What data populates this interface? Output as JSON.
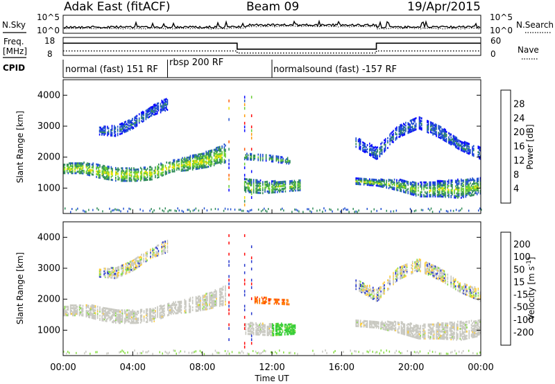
{
  "header": {
    "station": "Adak East (fitACF)",
    "beam": "Beam 09",
    "date": "19/Apr/2015"
  },
  "noise_panel": {
    "left_label": "N.Sky",
    "right_label": "N.Search",
    "left_ticks": [
      "10^5",
      "10^0"
    ],
    "right_ticks": [
      "10^5",
      "10^0"
    ]
  },
  "freq_panel": {
    "left_label_1": "Freq.",
    "left_label_2": "[MHz]",
    "right_label": "Nave",
    "left_ticks": [
      "18",
      "8"
    ],
    "right_ticks": [
      "60",
      "0"
    ],
    "freq_steps": [
      {
        "t": 0.0,
        "v": 14.8
      },
      {
        "t": 10.0,
        "v": 14.8
      },
      {
        "t": 10.0,
        "v": 11.5
      },
      {
        "t": 18.0,
        "v": 11.5
      },
      {
        "t": 18.0,
        "v": 14.8
      },
      {
        "t": 24.0,
        "v": 14.8
      }
    ],
    "nave_steps": [
      {
        "t": 0.0,
        "v": 15
      },
      {
        "t": 10.0,
        "v": 15
      },
      {
        "t": 10.0,
        "v": 8
      },
      {
        "t": 18.0,
        "v": 8
      },
      {
        "t": 18.0,
        "v": 15
      },
      {
        "t": 24.0,
        "v": 15
      }
    ]
  },
  "cpid": {
    "label": "CPID",
    "segments": [
      {
        "label": "normal (fast) 151 RF",
        "start": 0.0
      },
      {
        "label": "rbsp 200 RF",
        "start": 6.0
      },
      {
        "label": "normalsound (fast) -157 RF",
        "start": 12.0
      }
    ]
  },
  "chart_data": [
    {
      "type": "heatmap",
      "title": "",
      "ylabel": "Slant Range [km]",
      "xlabel": "",
      "xlim": [
        0,
        24
      ],
      "ylim": [
        180,
        4500
      ],
      "yticks": [
        "1000",
        "2000",
        "3000",
        "4000"
      ],
      "ytick_values": [
        1000,
        2000,
        3000,
        4000
      ],
      "colorbar": {
        "label": "Power [dB]",
        "ticks": [
          "4",
          "8",
          "12",
          "16",
          "20",
          "24",
          "28"
        ],
        "tick_values": [
          4,
          8,
          12,
          16,
          20,
          24,
          28
        ],
        "range": [
          0,
          32
        ],
        "colors": [
          "#0000ff",
          "#1f4fd0",
          "#2e8b57",
          "#66cc33",
          "#e8e000",
          "#ff9900",
          "#ff5500",
          "#ff0000"
        ]
      },
      "regions": [
        {
          "t0": 0.0,
          "t1": 9.3,
          "r0": [
            1450,
            1450,
            1300,
            1200,
            1200,
            1250,
            1500,
            1550,
            1650,
            1800
          ],
          "r1": [
            1750,
            1800,
            1750,
            1650,
            1600,
            1700,
            1850,
            2000,
            2150,
            2400
          ],
          "level": 20,
          "spread": 9
        },
        {
          "t0": 2.0,
          "t1": 6.0,
          "r0": [
            2700,
            2650,
            2900,
            3300,
            3500
          ],
          "r1": [
            2950,
            3000,
            3250,
            3600,
            3900
          ],
          "level": 8,
          "spread": 5
        },
        {
          "t0": 10.4,
          "t1": 13.6,
          "r0": [
            850,
            800,
            850,
            900
          ],
          "r1": [
            1300,
            1200,
            1200,
            1250
          ],
          "level": 17,
          "spread": 8
        },
        {
          "t0": 10.4,
          "t1": 13.0,
          "r0": [
            1900,
            1850,
            1750
          ],
          "r1": [
            2100,
            2050,
            1950
          ],
          "level": 13,
          "spread": 7
        },
        {
          "t0": 16.8,
          "t1": 24.0,
          "r0": [
            1100,
            1050,
            900,
            700,
            700,
            650,
            800
          ],
          "r1": [
            1300,
            1250,
            1250,
            1150,
            1200,
            1250,
            1300
          ],
          "level": 13,
          "spread": 10
        },
        {
          "t0": 16.8,
          "t1": 24.0,
          "r0": [
            2300,
            1900,
            2600,
            2900,
            2600,
            2200,
            1900
          ],
          "r1": [
            2600,
            2300,
            3000,
            3300,
            3000,
            2500,
            2300
          ],
          "level": 8,
          "spread": 5
        }
      ]
    },
    {
      "type": "heatmap",
      "title": "",
      "ylabel": "Slant Range [km]",
      "xlabel": "Time UT",
      "xlim": [
        0,
        24
      ],
      "ylim": [
        180,
        4500
      ],
      "xticks": [
        "00:00",
        "04:00",
        "08:00",
        "12:00",
        "16:00",
        "20:00",
        "00:00"
      ],
      "xtick_values": [
        0,
        4,
        8,
        12,
        16,
        20,
        24
      ],
      "yticks": [
        "1000",
        "2000",
        "3000",
        "4000"
      ],
      "ytick_values": [
        1000,
        2000,
        3000,
        4000
      ],
      "colorbar": {
        "label": "Velocity [m s",
        "label_sup": "-1",
        "label_end": "]",
        "ticks": [
          "200",
          "100",
          "50",
          "15",
          "-15",
          "-50",
          "-100",
          "-200"
        ],
        "tick_values": [
          200,
          100,
          50,
          15,
          -15,
          -50,
          -100,
          -200
        ],
        "colors": [
          "#2233cc",
          "#2f6f5f",
          "#33aa33",
          "#88dd44",
          "#c8c8c0",
          "#ffcc33",
          "#ff9900",
          "#ff5500",
          "#ff0000"
        ]
      },
      "regions": [
        {
          "t0": 0.0,
          "t1": 9.3,
          "r0": [
            1450,
            1450,
            1300,
            1200,
            1200,
            1250,
            1500,
            1550,
            1650,
            1800
          ],
          "r1": [
            1750,
            1800,
            1750,
            1650,
            1600,
            1700,
            1850,
            2000,
            2150,
            2400
          ],
          "kind": "grey"
        },
        {
          "t0": 2.0,
          "t1": 6.0,
          "r0": [
            2700,
            2650,
            2900,
            3300,
            3500
          ],
          "r1": [
            2950,
            3000,
            3250,
            3600,
            3900
          ],
          "kind": "mixed"
        },
        {
          "t0": 10.4,
          "t1": 12.0,
          "r0": [
            850,
            800
          ],
          "r1": [
            1200,
            1200
          ],
          "kind": "grey"
        },
        {
          "t0": 12.0,
          "t1": 13.3,
          "r0": [
            800,
            850
          ],
          "r1": [
            1200,
            1150
          ],
          "kind": "green"
        },
        {
          "t0": 11.0,
          "t1": 13.0,
          "r0": [
            1850,
            1800
          ],
          "r1": [
            2050,
            1950
          ],
          "kind": "orange"
        },
        {
          "t0": 16.8,
          "t1": 24.0,
          "r0": [
            1100,
            1050,
            900,
            700,
            700,
            650,
            800
          ],
          "r1": [
            1300,
            1250,
            1250,
            1150,
            1200,
            1250,
            1300
          ],
          "kind": "grey"
        },
        {
          "t0": 16.8,
          "t1": 24.0,
          "r0": [
            2300,
            1900,
            2600,
            2900,
            2600,
            2200,
            1900
          ],
          "r1": [
            2600,
            2300,
            3000,
            3300,
            3000,
            2500,
            2300
          ],
          "kind": "mixed"
        }
      ]
    }
  ]
}
